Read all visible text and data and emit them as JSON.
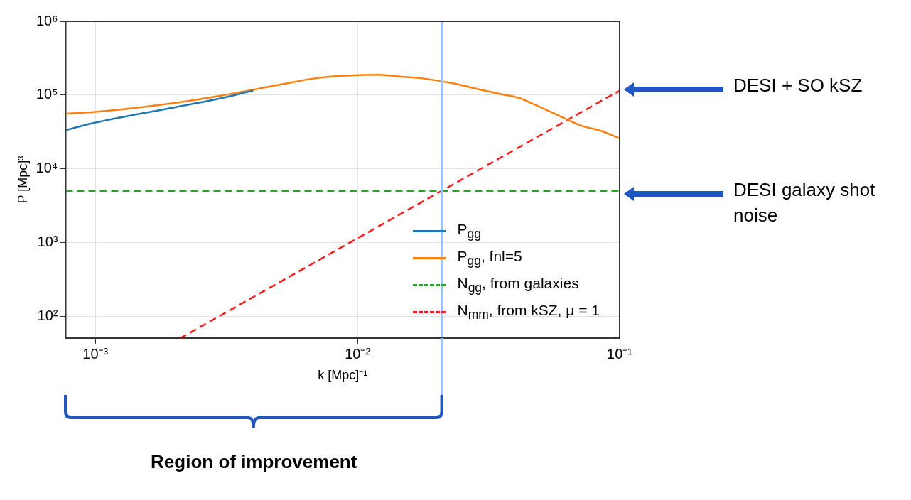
{
  "chart_data": {
    "type": "line",
    "xlabel": "k [Mpc]⁻¹",
    "ylabel": "P [Mpc]³",
    "log": "xy",
    "grid": true,
    "legend": "bottom right",
    "xlim": [
      0.00077,
      0.1
    ],
    "ylim": [
      50,
      1000000
    ],
    "xticks": [
      {
        "value": 0.001,
        "label": "10⁻³"
      },
      {
        "value": 0.01,
        "label": "10⁻²"
      },
      {
        "value": 0.1,
        "label": "10⁻¹"
      }
    ],
    "yticks": [
      {
        "value": 100,
        "label": "10²"
      },
      {
        "value": 1000,
        "label": "10³"
      },
      {
        "value": 10000,
        "label": "10⁴"
      },
      {
        "value": 100000,
        "label": "10⁵"
      },
      {
        "value": 1000000,
        "label": "10⁶"
      }
    ],
    "series": [
      {
        "name": "P$_{gg}$",
        "color": "#1f77b4",
        "line_style": "solid",
        "x": [
          0.00077,
          0.001,
          0.002,
          0.003,
          0.004
        ],
        "values": [
          33400,
          42300,
          68000,
          90000,
          115000
        ]
      },
      {
        "name": "P$_{gg}$, fnl=5",
        "color": "#ff7f0e",
        "line_style": "solid",
        "x": [
          0.00077,
          0.001,
          0.002,
          0.003,
          0.005,
          0.007,
          0.01,
          0.012,
          0.015,
          0.0172,
          0.0229,
          0.0305,
          0.0352,
          0.0406,
          0.0467,
          0.0623,
          0.072,
          0.0855,
          0.1
        ],
        "values": [
          56000,
          59000,
          78000,
          98000,
          137000,
          170000,
          186000,
          188000,
          176000,
          170000,
          145000,
          115000,
          103000,
          93000,
          76000,
          47500,
          38000,
          32500,
          25700
        ]
      },
      {
        "name": "N$_{gg}$, from galaxies",
        "color": "#2ca02c",
        "line_style": "dashed",
        "x": [
          0.00077,
          0.1
        ],
        "values": [
          5000,
          5000
        ]
      },
      {
        "name": "N$_{mm}$, from kSZ, μ = 1",
        "color": "#ff1a1a",
        "line_style": "dashed",
        "x": [
          0.0021,
          0.1
        ],
        "values": [
          50,
          115000
        ]
      }
    ],
    "ref_lines": [
      {
        "axis": "x",
        "value": 0.021,
        "color": "#9ec3f5"
      }
    ],
    "annotations": [
      "DESI + SO kSZ",
      "DESI galaxy shot noise",
      "Region of improvement"
    ]
  }
}
